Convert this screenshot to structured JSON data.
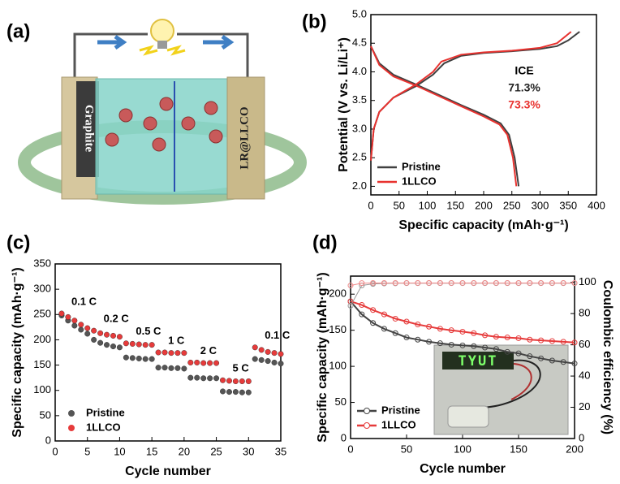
{
  "chart_data": [
    {
      "type": "schematic",
      "label": "(a)",
      "texts": [
        "Graphite",
        "LR@LLCO"
      ]
    },
    {
      "type": "line",
      "label": "(b)",
      "xlabel": "Specific capacity (mAh·g⁻¹)",
      "ylabel": "Potential (V vs. Li/Li⁺)",
      "xlim": [
        0,
        400
      ],
      "ylim": [
        1.85,
        5.0
      ],
      "xticks": [
        0,
        50,
        100,
        150,
        200,
        250,
        300,
        350,
        400
      ],
      "yticks": [
        {
          "value": 2,
          "label": "2.0"
        },
        {
          "value": 2.5,
          "label": "2.5"
        },
        {
          "value": 3,
          "label": "3.0"
        },
        {
          "value": 3.5,
          "label": "3.5"
        },
        {
          "value": 4,
          "label": "4.0"
        },
        {
          "value": 4.5,
          "label": "4.5"
        },
        {
          "value": 5,
          "label": "5.0"
        }
      ],
      "grid": false,
      "legend": "lower left",
      "annotations": [
        {
          "text": "ICE",
          "color": "#000000"
        },
        {
          "text": "71.3%",
          "color": "#222222"
        },
        {
          "text": "73.3%",
          "color": "#e8322f"
        }
      ],
      "series": [
        {
          "name": "Pristine",
          "color": "#404040",
          "x": [
            0,
            5,
            15,
            40,
            80,
            110,
            130,
            160,
            200,
            250,
            300,
            330,
            350,
            370,
            null,
            0,
            15,
            40,
            80,
            120,
            160,
            200,
            230,
            245,
            255,
            262
          ],
          "values": [
            2.45,
            3.0,
            3.3,
            3.55,
            3.75,
            3.95,
            4.15,
            4.28,
            4.33,
            4.36,
            4.4,
            4.45,
            4.55,
            4.7,
            null,
            4.45,
            4.15,
            3.95,
            3.78,
            3.6,
            3.42,
            3.25,
            3.1,
            2.9,
            2.5,
            2.0
          ]
        },
        {
          "name": "1LLCO",
          "color": "#e8322f",
          "x": [
            0,
            5,
            15,
            40,
            80,
            110,
            125,
            160,
            200,
            250,
            300,
            330,
            355,
            null,
            0,
            15,
            40,
            80,
            120,
            160,
            200,
            228,
            242,
            252,
            258
          ],
          "values": [
            2.45,
            3.0,
            3.3,
            3.55,
            3.78,
            4.0,
            4.18,
            4.3,
            4.34,
            4.37,
            4.42,
            4.5,
            4.7,
            null,
            4.45,
            4.12,
            3.92,
            3.76,
            3.58,
            3.4,
            3.22,
            3.08,
            2.9,
            2.5,
            2.0
          ]
        }
      ]
    },
    {
      "type": "scatter",
      "label": "(c)",
      "xlabel": "Cycle number",
      "ylabel": "Specific capacity (mAh·g⁻¹)",
      "xlim": [
        0,
        35
      ],
      "ylim": [
        0,
        350
      ],
      "xticks": [
        0,
        5,
        10,
        15,
        20,
        25,
        30,
        35
      ],
      "yticks": [
        0,
        50,
        100,
        150,
        200,
        250,
        300,
        350
      ],
      "grid": false,
      "legend": "lower left",
      "rate_labels": [
        "0.1 C",
        "0.2 C",
        "0.5 C",
        "1 C",
        "2 C",
        "5 C",
        "0.1 C"
      ],
      "x": [
        1,
        2,
        3,
        4,
        5,
        6,
        7,
        8,
        9,
        10,
        11,
        12,
        13,
        14,
        15,
        16,
        17,
        18,
        19,
        20,
        21,
        22,
        23,
        24,
        25,
        26,
        27,
        28,
        29,
        30,
        31,
        32,
        33,
        34,
        35
      ],
      "series": [
        {
          "name": "Pristine",
          "color": "#555555",
          "values": [
            248,
            238,
            228,
            220,
            212,
            200,
            194,
            190,
            187,
            185,
            165,
            164,
            163,
            162,
            162,
            145,
            145,
            144,
            144,
            143,
            125,
            125,
            124,
            124,
            124,
            98,
            97,
            97,
            96,
            96,
            162,
            160,
            158,
            155,
            153
          ]
        },
        {
          "name": "1LLCO",
          "color": "#e63b3b",
          "values": [
            252,
            245,
            238,
            230,
            223,
            218,
            213,
            210,
            208,
            206,
            193,
            192,
            191,
            190,
            190,
            175,
            175,
            174,
            174,
            174,
            155,
            155,
            154,
            154,
            154,
            120,
            119,
            118,
            118,
            118,
            185,
            180,
            176,
            174,
            172
          ]
        }
      ]
    },
    {
      "type": "line",
      "label": "(d)",
      "xlabel": "Cycle number",
      "ylabel": "Specific capacity (mAh·g⁻¹)",
      "y2label": "Coulombic efficiency (%)",
      "xlim": [
        0,
        200
      ],
      "ylim": [
        0,
        225
      ],
      "y2lim": [
        0,
        104
      ],
      "xticks": [
        0,
        50,
        100,
        150,
        200
      ],
      "yticks": [
        0,
        50,
        100,
        150,
        200
      ],
      "y2ticks": [
        0,
        20,
        40,
        60,
        80,
        100
      ],
      "grid": false,
      "legend": "lower left",
      "markers": true,
      "inset_text": "TYUT",
      "x": [
        0,
        10,
        20,
        30,
        40,
        50,
        60,
        70,
        80,
        90,
        100,
        110,
        120,
        130,
        140,
        150,
        160,
        170,
        180,
        190,
        200
      ],
      "series": [
        {
          "name": "Pristine",
          "color": "#444444",
          "values": [
            190,
            172,
            160,
            152,
            146,
            140,
            137,
            134,
            132,
            130,
            129,
            128,
            126,
            124,
            120,
            118,
            114,
            111,
            108,
            106,
            104
          ]
        },
        {
          "name": "1LLCO",
          "color": "#e63b3b",
          "values": [
            190,
            185,
            178,
            172,
            166,
            162,
            158,
            155,
            152,
            150,
            148,
            146,
            143,
            141,
            140,
            139,
            137,
            136,
            135,
            134,
            133
          ]
        },
        {
          "name": "Pristine",
          "color": "#999999",
          "axis": "y2",
          "values": [
            85,
            98,
            99,
            99.3,
            99.4,
            99.5,
            99.5,
            99.5,
            99.5,
            99.5,
            99.5,
            99.5,
            99.5,
            99.5,
            99.5,
            99.5,
            99.5,
            99.5,
            99.5,
            99.5,
            99.5
          ]
        },
        {
          "name": "1LLCO",
          "color": "#f08a8a",
          "axis": "y2",
          "values": [
            98,
            99.5,
            99.6,
            99.6,
            99.6,
            99.6,
            99.6,
            99.6,
            99.6,
            99.6,
            99.6,
            99.6,
            99.6,
            99.6,
            99.6,
            99.6,
            99.6,
            99.6,
            99.6,
            99.6,
            99.6
          ]
        }
      ]
    }
  ]
}
